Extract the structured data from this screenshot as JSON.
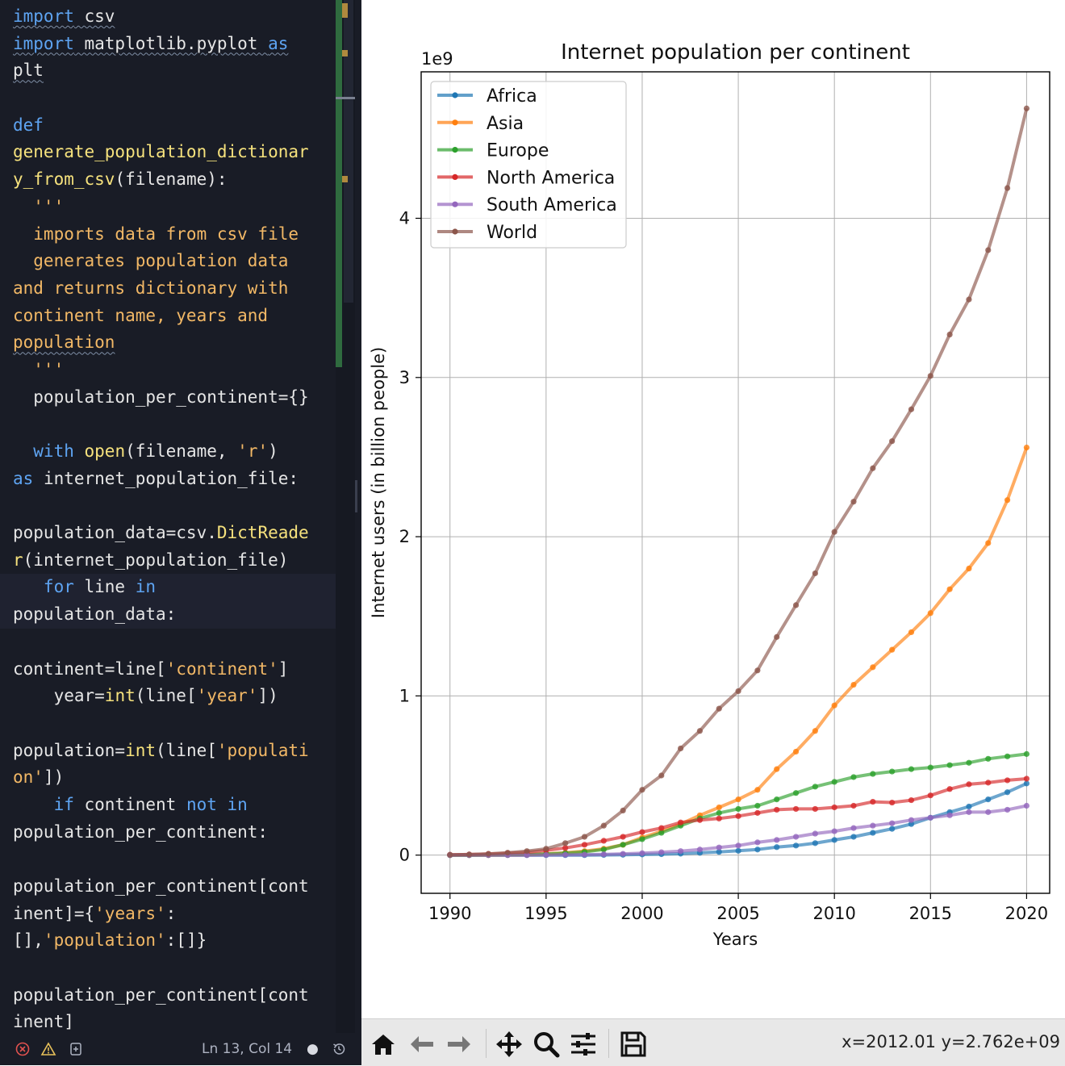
{
  "editor": {
    "lines": [
      [
        {
          "t": "import",
          "c": "kw sq"
        },
        {
          "t": " csv",
          "c": "sq"
        }
      ],
      [
        {
          "t": "import",
          "c": "kw sq"
        },
        {
          "t": " matplotlib.pyplot ",
          "c": "sq"
        },
        {
          "t": "as",
          "c": "kw sq"
        }
      ],
      [
        {
          "t": "plt",
          "c": "sq"
        }
      ],
      [],
      [
        {
          "t": "def",
          "c": "kw"
        }
      ],
      [
        {
          "t": "generate_population_dictionar",
          "c": "fn"
        }
      ],
      [
        {
          "t": "y_from_csv",
          "c": "fn"
        },
        {
          "t": "(filename):",
          "c": ""
        }
      ],
      [
        {
          "t": "  '''",
          "c": "doc"
        }
      ],
      [
        {
          "t": "  imports data from csv file",
          "c": "doc"
        }
      ],
      [
        {
          "t": "  generates population data",
          "c": "doc"
        }
      ],
      [
        {
          "t": "and returns dictionary with",
          "c": "doc"
        }
      ],
      [
        {
          "t": "continent name, years and",
          "c": "doc"
        }
      ],
      [
        {
          "t": "population",
          "c": "doc sq"
        }
      ],
      [
        {
          "t": "  '''",
          "c": "doc"
        }
      ],
      [
        {
          "t": "  population_per_continent={}",
          "c": ""
        }
      ],
      [],
      [
        {
          "t": "  with",
          "c": "kw"
        },
        {
          "t": " ",
          "c": ""
        },
        {
          "t": "open",
          "c": "fn"
        },
        {
          "t": "(filename, ",
          "c": ""
        },
        {
          "t": "'r'",
          "c": "str"
        },
        {
          "t": ")",
          "c": ""
        }
      ],
      [
        {
          "t": "as",
          "c": "kw"
        },
        {
          "t": " internet_population_file:",
          "c": ""
        }
      ],
      [],
      [
        {
          "t": "population_data=csv.",
          "c": ""
        },
        {
          "t": "DictReade",
          "c": "fn"
        }
      ],
      [
        {
          "t": "r",
          "c": "fn"
        },
        {
          "t": "(internet_population_file)",
          "c": ""
        }
      ],
      [
        {
          "t": "   for",
          "c": "kw"
        },
        {
          "t": " line ",
          "c": ""
        },
        {
          "t": "in",
          "c": "kw"
        }
      ],
      [
        {
          "t": "population_data:",
          "c": ""
        }
      ],
      [],
      [
        {
          "t": "continent=line[",
          "c": ""
        },
        {
          "t": "'continent'",
          "c": "str"
        },
        {
          "t": "]",
          "c": ""
        }
      ],
      [
        {
          "t": "    year=",
          "c": ""
        },
        {
          "t": "int",
          "c": "fn"
        },
        {
          "t": "(line[",
          "c": ""
        },
        {
          "t": "'year'",
          "c": "str"
        },
        {
          "t": "])",
          "c": ""
        }
      ],
      [],
      [
        {
          "t": "population=",
          "c": ""
        },
        {
          "t": "int",
          "c": "fn"
        },
        {
          "t": "(line[",
          "c": ""
        },
        {
          "t": "'populati",
          "c": "str"
        }
      ],
      [
        {
          "t": "on'",
          "c": "str"
        },
        {
          "t": "])",
          "c": ""
        }
      ],
      [
        {
          "t": "    if",
          "c": "kw"
        },
        {
          "t": " continent ",
          "c": ""
        },
        {
          "t": "not",
          "c": "kw"
        },
        {
          "t": " ",
          "c": ""
        },
        {
          "t": "in",
          "c": "kw"
        }
      ],
      [
        {
          "t": "population_per_continent:",
          "c": ""
        }
      ],
      [],
      [
        {
          "t": "population_per_continent[cont",
          "c": ""
        }
      ],
      [
        {
          "t": "inent]={",
          "c": ""
        },
        {
          "t": "'years'",
          "c": "str"
        },
        {
          "t": ":",
          "c": ""
        }
      ],
      [
        {
          "t": "[],",
          "c": ""
        },
        {
          "t": "'population'",
          "c": "str"
        },
        {
          "t": ":[]}",
          "c": ""
        }
      ],
      [],
      [
        {
          "t": "population_per_continent[cont",
          "c": ""
        }
      ],
      [
        {
          "t": "inent]",
          "c": ""
        }
      ]
    ],
    "current_lines": [
      21,
      22
    ]
  },
  "statusbar": {
    "cursor": "Ln 13, Col 14",
    "dirty_dot": "●"
  },
  "toolbar": {
    "coords": "x=2012.01 y=2.762e+09",
    "buttons": [
      "home-icon",
      "back-arrow-icon",
      "forward-arrow-icon",
      "pan-icon",
      "zoom-icon",
      "configure-icon",
      "save-icon"
    ]
  },
  "chart_data": {
    "type": "line",
    "title": "Internet population per continent",
    "xlabel": "Years",
    "ylabel": "Internet users (in billion people)",
    "offset_label": "1e9",
    "xlim": [
      1988.5,
      2021.2
    ],
    "ylim": [
      -240000000,
      4920000000
    ],
    "xticks": [
      1990,
      1995,
      2000,
      2005,
      2010,
      2015,
      2020
    ],
    "xtick_labels": [
      "1990",
      "1995",
      "2000",
      "2005",
      "2010",
      "2015",
      "2020"
    ],
    "yticks": [
      0,
      1000000000,
      2000000000,
      3000000000,
      4000000000
    ],
    "ytick_labels": [
      "0",
      "1",
      "2",
      "3",
      "4"
    ],
    "grid": true,
    "legend_position": "upper left",
    "x": [
      1990,
      1991,
      1992,
      1993,
      1994,
      1995,
      1996,
      1997,
      1998,
      1999,
      2000,
      2001,
      2002,
      2003,
      2004,
      2005,
      2006,
      2007,
      2008,
      2009,
      2010,
      2011,
      2012,
      2013,
      2014,
      2015,
      2016,
      2017,
      2018,
      2019,
      2020
    ],
    "series": [
      {
        "name": "Africa",
        "color": "#1f77b4",
        "values": [
          0,
          0,
          0,
          0,
          0,
          0,
          0,
          0,
          1000000,
          2000000,
          4000000,
          6000000,
          9000000,
          14000000,
          20000000,
          27000000,
          35000000,
          50000000,
          60000000,
          75000000,
          95000000,
          115000000,
          140000000,
          165000000,
          195000000,
          235000000,
          270000000,
          305000000,
          350000000,
          395000000,
          450000000
        ]
      },
      {
        "name": "Asia",
        "color": "#ff7f0e",
        "values": [
          0,
          0,
          0,
          1000000,
          3000000,
          8000000,
          15000000,
          25000000,
          40000000,
          65000000,
          110000000,
          150000000,
          195000000,
          250000000,
          300000000,
          350000000,
          410000000,
          540000000,
          650000000,
          780000000,
          940000000,
          1070000000,
          1180000000,
          1290000000,
          1400000000,
          1520000000,
          1670000000,
          1800000000,
          1960000000,
          2230000000,
          2560000000
        ]
      },
      {
        "name": "Europe",
        "color": "#2ca02c",
        "values": [
          0,
          0,
          1000000,
          2000000,
          4000000,
          7000000,
          12000000,
          20000000,
          35000000,
          65000000,
          100000000,
          140000000,
          185000000,
          230000000,
          265000000,
          290000000,
          310000000,
          350000000,
          390000000,
          430000000,
          460000000,
          490000000,
          510000000,
          525000000,
          540000000,
          550000000,
          565000000,
          580000000,
          605000000,
          620000000,
          635000000
        ]
      },
      {
        "name": "North America",
        "color": "#d62728",
        "values": [
          2000000,
          4000000,
          7000000,
          12000000,
          18000000,
          30000000,
          45000000,
          65000000,
          90000000,
          115000000,
          145000000,
          170000000,
          205000000,
          220000000,
          230000000,
          245000000,
          265000000,
          285000000,
          290000000,
          290000000,
          300000000,
          310000000,
          335000000,
          330000000,
          345000000,
          375000000,
          415000000,
          445000000,
          455000000,
          470000000,
          480000000
        ]
      },
      {
        "name": "South America",
        "color": "#9467bd",
        "values": [
          0,
          0,
          0,
          0,
          0,
          1000000,
          2000000,
          3000000,
          5000000,
          8000000,
          12000000,
          18000000,
          25000000,
          35000000,
          48000000,
          60000000,
          80000000,
          95000000,
          115000000,
          135000000,
          150000000,
          170000000,
          185000000,
          200000000,
          220000000,
          235000000,
          250000000,
          270000000,
          270000000,
          285000000,
          310000000
        ]
      },
      {
        "name": "World",
        "color": "#8c564b",
        "values": [
          2000000,
          4000000,
          8000000,
          15000000,
          25000000,
          40000000,
          75000000,
          115000000,
          185000000,
          280000000,
          410000000,
          500000000,
          670000000,
          780000000,
          920000000,
          1030000000,
          1160000000,
          1370000000,
          1570000000,
          1770000000,
          2030000000,
          2220000000,
          2430000000,
          2600000000,
          2800000000,
          3010000000,
          3270000000,
          3490000000,
          3800000000,
          4190000000,
          4690000000
        ]
      }
    ]
  }
}
